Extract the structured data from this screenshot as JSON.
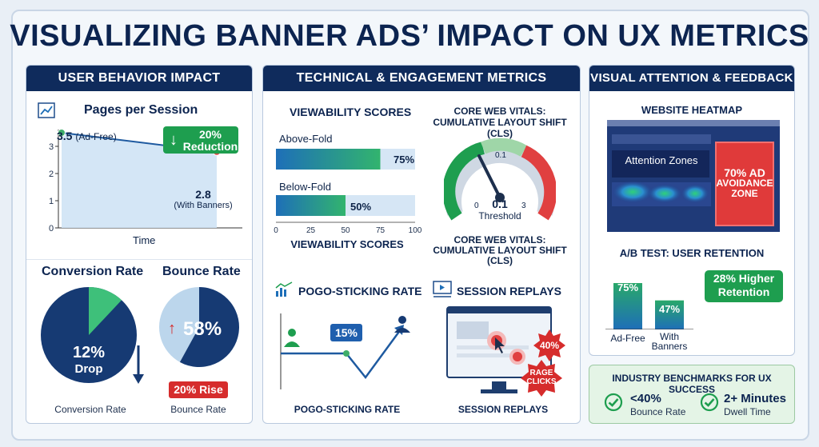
{
  "title": "VISUALIZING BANNER ADS’ IMPACT ON UX METRICS",
  "panel1": {
    "header": "USER BEHAVIOR IMPACT",
    "pages_title": "Pages per Session",
    "point_ad_free_value": "3.5",
    "point_ad_free_label": "(Ad-Free)",
    "point_banner_value": "2.8",
    "point_banner_label": "(With Banners)",
    "reduction_pct": "20%",
    "reduction_word": "Reduction",
    "x_axis_label": "Time",
    "y_ticks": [
      "0",
      "1",
      "2",
      "3"
    ],
    "conversion_title": "Conversion Rate",
    "conversion_value": "12%",
    "conversion_word": "Drop",
    "conversion_caption": "Conversion Rate",
    "bounce_title": "Bounce Rate",
    "bounce_value": "58%",
    "bounce_rise": "20% Rise",
    "bounce_caption": "Bounce Rate"
  },
  "panel2": {
    "header": "TECHNICAL & ENGAGEMENT METRICS",
    "viewability_title": "VIEWABILITY SCORES",
    "above_label": "Above-Fold",
    "above_value": "75%",
    "below_label": "Below-Fold",
    "below_value": "50%",
    "axis_ticks": [
      "0",
      "25",
      "50",
      "75",
      "100"
    ],
    "viewability_caption": "VIEWABILITY SCORES",
    "cwv_title_line1": "CORE WEB VITALS:",
    "cwv_title_line2": "CUMULATIVE LAYOUT SHIFT (CLS)",
    "gauge_zero": "0",
    "gauge_top": "0.1",
    "gauge_three": "3",
    "gauge_value": "0.1",
    "gauge_threshold": "Threshold",
    "cwv_caption_line1": "CORE WEB VITALS:",
    "cwv_caption_line2": "CUMULATIVE LAYOUT SHIFT",
    "cwv_caption_line3": "(CLS)",
    "pogo_title": "POGO-STICKING RATE",
    "pogo_value": "15%",
    "pogo_caption": "POGO-STICKING RATE",
    "replay_title": "SESSION REPLAYS",
    "replay_badge": "40%",
    "rage_line1": "RAGE",
    "rage_line2": "CLICKS",
    "replay_caption": "SESSION REPLAYS"
  },
  "panel3": {
    "header": "VISUAL ATTENTION & FEEDBACK",
    "heatmap_title": "WEBSITE HEATMAP",
    "attention_zones": "Attention Zones",
    "avoid_line1": "70% AD",
    "avoid_line2": "AVOIDANCE",
    "avoid_line3": "ZONE",
    "ab_title": "A/B TEST: USER RETENTION",
    "ad_free_value": "75%",
    "banners_value": "47%",
    "ad_free_label": "Ad-Free",
    "banners_label_line1": "With",
    "banners_label_line2": "Banners",
    "retention_line1": "28% Higher",
    "retention_line2": "Retention"
  },
  "benchmarks": {
    "title": "INDUSTRY BENCHMARKS FOR UX SUCCESS",
    "item1_value": "<40%",
    "item1_label": "Bounce Rate",
    "item2_value": "2+ Minutes",
    "item2_label": "Dwell Time"
  },
  "chart_data": [
    {
      "type": "line",
      "title": "Pages per Session",
      "xlabel": "Time",
      "ylabel": "",
      "x": [
        "Ad-Free",
        "With Banners"
      ],
      "values": [
        3.5,
        2.8
      ],
      "ylim": [
        0,
        3.5
      ]
    },
    {
      "type": "pie",
      "title": "Conversion Rate",
      "categories": [
        "Drop",
        "Rest"
      ],
      "values": [
        12,
        88
      ]
    },
    {
      "type": "pie",
      "title": "Bounce Rate",
      "categories": [
        "Bounce",
        "Rest"
      ],
      "values": [
        58,
        42
      ]
    },
    {
      "type": "bar",
      "title": "VIEWABILITY SCORES",
      "categories": [
        "Above-Fold",
        "Below-Fold"
      ],
      "values": [
        75,
        50
      ],
      "xlim": [
        0,
        100
      ]
    },
    {
      "type": "bar",
      "title": "A/B TEST: USER RETENTION",
      "categories": [
        "Ad-Free",
        "With Banners"
      ],
      "values": [
        75,
        47
      ]
    }
  ],
  "colors": {
    "navy": "#0f2b5c",
    "green": "#1e9e4f",
    "red": "#d62c2c",
    "blue": "#1e6fb8"
  }
}
